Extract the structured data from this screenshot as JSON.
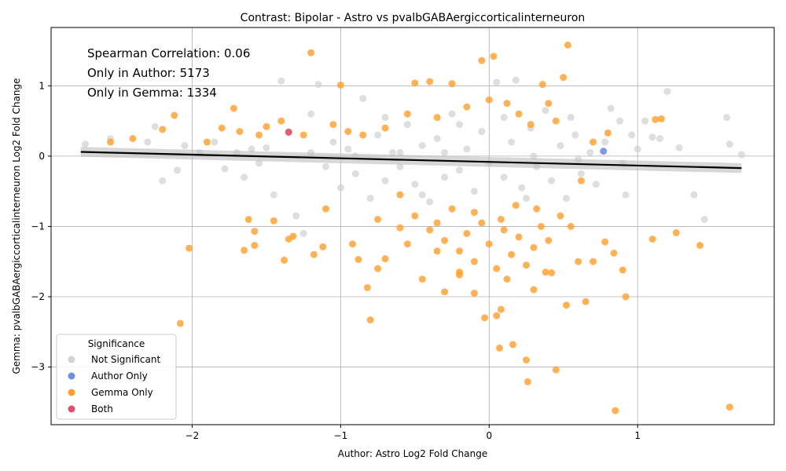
{
  "chart_data": {
    "type": "scatter",
    "title": "Contrast: Bipolar - Astro vs pvalbGABAergiccorticalinterneuron",
    "xlabel": "Author: Astro Log2 Fold Change",
    "ylabel": "Gemma: pvalbGABAergiccorticalinterneuron Log2 Fold Change",
    "xlim": [
      -2.95,
      1.92
    ],
    "ylim": [
      -3.82,
      1.83
    ],
    "x_ticks": [
      -2,
      -1,
      0,
      1
    ],
    "x_tick_labels": [
      "−2",
      "−1",
      "0",
      "1"
    ],
    "y_ticks": [
      -3,
      -2,
      -1,
      0,
      1
    ],
    "y_tick_labels": [
      "−3",
      "−2",
      "−1",
      "0",
      "1"
    ],
    "grid": true,
    "annotations": [
      "Spearman Correlation: 0.06",
      "Only in Author: 5173",
      "Only in Gemma: 1334"
    ],
    "legend": {
      "title": "Significance",
      "placement": "lower-left",
      "entries": [
        "Not Significant",
        "Author Only",
        "Gemma Only",
        "Both"
      ]
    },
    "colors": {
      "not_significant": "#d3d3d3",
      "author_only": "#6f8fe0",
      "gemma_only": "#ff9f2a",
      "both": "#e0506a",
      "regression_line": "#000000",
      "grid": "#b0b0b0"
    },
    "regression": {
      "x": [
        -2.75,
        1.7
      ],
      "y": [
        0.06,
        -0.17
      ]
    },
    "series": [
      {
        "name": "Not Significant",
        "points": [
          [
            -2.72,
            0.17
          ],
          [
            -2.55,
            0.25
          ],
          [
            -2.3,
            0.2
          ],
          [
            -2.25,
            0.42
          ],
          [
            -2.2,
            -0.35
          ],
          [
            -2.1,
            -0.2
          ],
          [
            -2.05,
            0.15
          ],
          [
            -1.95,
            0.05
          ],
          [
            -1.85,
            0.2
          ],
          [
            -1.78,
            -0.18
          ],
          [
            -1.7,
            0.05
          ],
          [
            -1.65,
            -0.3
          ],
          [
            -1.55,
            -0.1
          ],
          [
            -1.5,
            0.12
          ],
          [
            -1.45,
            -0.55
          ],
          [
            -1.4,
            1.07
          ],
          [
            -1.35,
            0.35
          ],
          [
            -1.3,
            -0.85
          ],
          [
            -1.25,
            -1.1
          ],
          [
            -1.2,
            0.6
          ],
          [
            -1.15,
            1.02
          ],
          [
            -1.1,
            -0.15
          ],
          [
            -1.05,
            0.2
          ],
          [
            -1.0,
            -0.45
          ],
          [
            -0.95,
            0.1
          ],
          [
            -0.9,
            -0.25
          ],
          [
            -0.85,
            0.82
          ],
          [
            -0.8,
            -0.6
          ],
          [
            -0.75,
            0.3
          ],
          [
            -0.7,
            -0.35
          ],
          [
            -0.65,
            0.05
          ],
          [
            -0.6,
            -0.15
          ],
          [
            -0.55,
            0.45
          ],
          [
            -0.5,
            -0.4
          ],
          [
            -0.45,
            0.15
          ],
          [
            -0.4,
            -0.65
          ],
          [
            -0.35,
            0.25
          ],
          [
            -0.3,
            -0.3
          ],
          [
            -0.25,
            0.6
          ],
          [
            -0.2,
            -0.2
          ],
          [
            -0.15,
            0.1
          ],
          [
            -0.1,
            -0.5
          ],
          [
            -0.05,
            0.35
          ],
          [
            0.0,
            -0.1
          ],
          [
            0.05,
            1.05
          ],
          [
            0.1,
            -0.3
          ],
          [
            0.15,
            0.2
          ],
          [
            0.18,
            1.08
          ],
          [
            0.22,
            -0.45
          ],
          [
            0.28,
            0.4
          ],
          [
            0.32,
            -0.15
          ],
          [
            0.38,
            0.65
          ],
          [
            0.42,
            -0.35
          ],
          [
            0.48,
            0.15
          ],
          [
            0.52,
            -0.6
          ],
          [
            0.58,
            0.3
          ],
          [
            0.62,
            -0.25
          ],
          [
            0.68,
            0.05
          ],
          [
            0.72,
            -0.4
          ],
          [
            0.78,
            0.2
          ],
          [
            0.82,
            0.68
          ],
          [
            0.88,
            0.5
          ],
          [
            0.92,
            -0.55
          ],
          [
            0.96,
            0.3
          ],
          [
            1.0,
            0.1
          ],
          [
            1.05,
            0.5
          ],
          [
            1.1,
            0.27
          ],
          [
            1.15,
            0.25
          ],
          [
            1.2,
            0.92
          ],
          [
            1.28,
            0.12
          ],
          [
            1.38,
            -0.55
          ],
          [
            1.45,
            -0.9
          ],
          [
            1.6,
            0.55
          ],
          [
            1.62,
            0.17
          ],
          [
            1.7,
            0.02
          ],
          [
            -0.3,
            0.05
          ],
          [
            -0.6,
            0.05
          ],
          [
            -0.9,
            0.0
          ],
          [
            -1.2,
            0.05
          ],
          [
            -1.6,
            0.1
          ],
          [
            0.3,
            0.0
          ],
          [
            0.6,
            -0.05
          ],
          [
            0.9,
            -0.1
          ],
          [
            -0.2,
            0.45
          ],
          [
            0.1,
            0.55
          ],
          [
            -0.45,
            -0.55
          ],
          [
            0.25,
            -0.6
          ],
          [
            -0.7,
            0.55
          ],
          [
            0.55,
            0.55
          ]
        ]
      },
      {
        "name": "Author Only",
        "points": [
          [
            0.77,
            0.07
          ]
        ]
      },
      {
        "name": "Gemma Only",
        "points": [
          [
            -2.55,
            0.2
          ],
          [
            -2.4,
            0.25
          ],
          [
            -2.2,
            0.38
          ],
          [
            -2.12,
            0.58
          ],
          [
            -2.08,
            -2.38
          ],
          [
            -2.02,
            -1.31
          ],
          [
            -1.8,
            0.4
          ],
          [
            -1.72,
            0.68
          ],
          [
            -1.65,
            -1.34
          ],
          [
            -1.62,
            -0.9
          ],
          [
            -1.58,
            -1.07
          ],
          [
            -1.58,
            -1.27
          ],
          [
            -1.5,
            0.42
          ],
          [
            -1.45,
            -0.92
          ],
          [
            -1.38,
            -1.48
          ],
          [
            -1.35,
            -1.18
          ],
          [
            -1.32,
            -1.14
          ],
          [
            -1.2,
            1.47
          ],
          [
            -1.18,
            -1.4
          ],
          [
            -1.12,
            -1.29
          ],
          [
            -1.1,
            -0.75
          ],
          [
            -1.0,
            1.01
          ],
          [
            -0.92,
            -1.25
          ],
          [
            -0.88,
            -1.47
          ],
          [
            -0.82,
            -1.87
          ],
          [
            -0.8,
            -2.33
          ],
          [
            -0.75,
            -1.6
          ],
          [
            -0.7,
            -1.46
          ],
          [
            -0.6,
            -1.02
          ],
          [
            -0.55,
            -1.25
          ],
          [
            -0.5,
            1.04
          ],
          [
            -0.45,
            -1.75
          ],
          [
            -0.4,
            1.06
          ],
          [
            -0.35,
            -1.35
          ],
          [
            -0.3,
            -1.93
          ],
          [
            -0.25,
            1.03
          ],
          [
            -0.2,
            -1.69
          ],
          [
            -0.1,
            -1.95
          ],
          [
            -0.05,
            1.36
          ],
          [
            -0.03,
            -2.3
          ],
          [
            0.03,
            1.42
          ],
          [
            0.05,
            -2.27
          ],
          [
            0.07,
            -2.73
          ],
          [
            0.08,
            -2.18
          ],
          [
            0.16,
            -2.68
          ],
          [
            0.25,
            -2.9
          ],
          [
            0.26,
            -3.21
          ],
          [
            0.3,
            -1.9
          ],
          [
            0.36,
            1.02
          ],
          [
            0.42,
            -1.66
          ],
          [
            0.45,
            -3.04
          ],
          [
            0.5,
            1.12
          ],
          [
            0.52,
            -2.12
          ],
          [
            0.53,
            1.58
          ],
          [
            0.6,
            -1.5
          ],
          [
            0.65,
            -2.07
          ],
          [
            0.7,
            -1.5
          ],
          [
            0.78,
            -1.22
          ],
          [
            0.8,
            0.33
          ],
          [
            0.84,
            -1.38
          ],
          [
            0.85,
            -3.62
          ],
          [
            0.9,
            -1.62
          ],
          [
            0.92,
            -2.0
          ],
          [
            1.1,
            -1.18
          ],
          [
            1.12,
            0.52
          ],
          [
            1.16,
            0.53
          ],
          [
            1.26,
            -1.09
          ],
          [
            1.42,
            -1.27
          ],
          [
            1.62,
            -3.57
          ],
          [
            -1.9,
            0.2
          ],
          [
            -1.68,
            0.35
          ],
          [
            -1.55,
            0.3
          ],
          [
            -1.4,
            0.5
          ],
          [
            -1.25,
            0.3
          ],
          [
            -1.05,
            0.45
          ],
          [
            -0.95,
            0.35
          ],
          [
            -0.85,
            0.3
          ],
          [
            -0.7,
            0.4
          ],
          [
            -0.55,
            0.6
          ],
          [
            -0.35,
            0.55
          ],
          [
            -0.15,
            0.7
          ],
          [
            0.0,
            0.8
          ],
          [
            0.12,
            0.75
          ],
          [
            0.2,
            0.6
          ],
          [
            0.28,
            0.45
          ],
          [
            0.4,
            0.75
          ],
          [
            0.45,
            0.5
          ],
          [
            -0.5,
            -0.85
          ],
          [
            -0.4,
            -1.05
          ],
          [
            -0.3,
            -1.2
          ],
          [
            -0.2,
            -1.35
          ],
          [
            -0.15,
            -1.1
          ],
          [
            -0.1,
            -1.5
          ],
          [
            -0.05,
            -0.95
          ],
          [
            0.0,
            -1.25
          ],
          [
            0.05,
            -1.6
          ],
          [
            0.1,
            -1.05
          ],
          [
            0.15,
            -1.4
          ],
          [
            0.2,
            -1.15
          ],
          [
            0.25,
            -1.55
          ],
          [
            0.3,
            -1.3
          ],
          [
            0.35,
            -1.0
          ],
          [
            0.4,
            -1.2
          ],
          [
            0.48,
            -0.85
          ],
          [
            -0.25,
            -0.75
          ],
          [
            -0.1,
            -0.8
          ],
          [
            0.08,
            -0.9
          ],
          [
            0.18,
            -0.7
          ],
          [
            -0.35,
            -0.95
          ],
          [
            0.32,
            -0.75
          ],
          [
            0.55,
            -1.0
          ],
          [
            -0.6,
            -0.55
          ],
          [
            0.62,
            -0.35
          ],
          [
            0.7,
            0.2
          ],
          [
            -0.75,
            -0.9
          ],
          [
            0.12,
            -1.75
          ],
          [
            -0.2,
            -1.65
          ],
          [
            0.38,
            -1.65
          ]
        ]
      },
      {
        "name": "Both",
        "points": [
          [
            -1.35,
            0.34
          ]
        ]
      }
    ]
  }
}
